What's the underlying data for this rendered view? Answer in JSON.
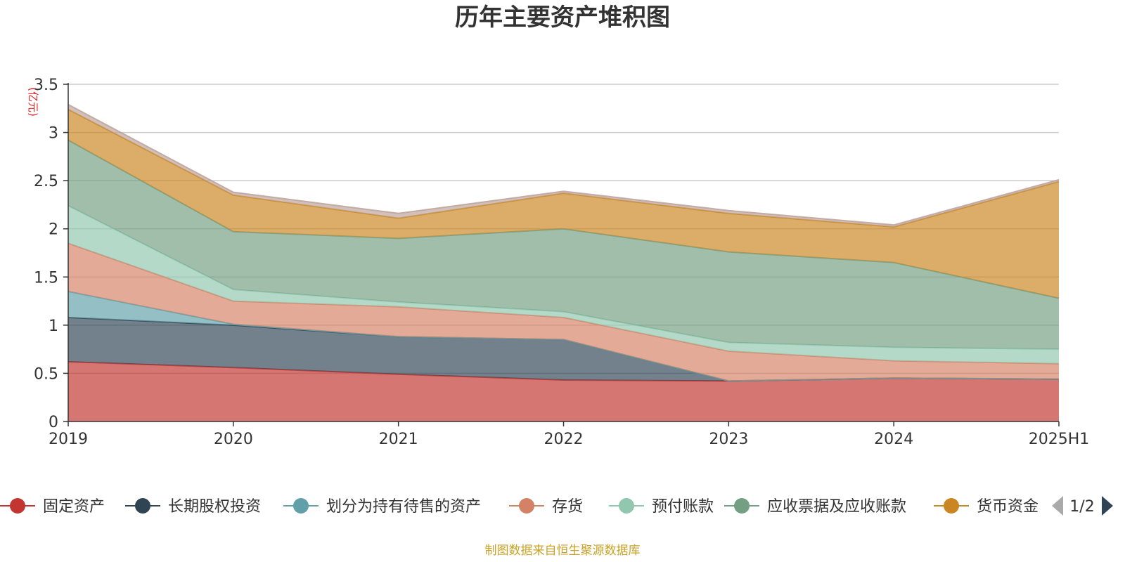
{
  "chart_data": {
    "type": "area",
    "stacked": true,
    "title": "历年主要资产堆积图",
    "y_unit": "(亿元)",
    "categories": [
      "2019",
      "2020",
      "2021",
      "2022",
      "2023",
      "2024",
      "2025H1"
    ],
    "ylim": [
      0,
      3.5
    ],
    "y_ticks": [
      "0",
      "0.5",
      "1",
      "1.5",
      "2",
      "2.5",
      "3",
      "3.5"
    ],
    "grid": true,
    "legend_position": "bottom",
    "series": [
      {
        "name": "固定资产",
        "color": "#c23531",
        "values": [
          0.62,
          0.56,
          0.49,
          0.43,
          0.42,
          0.45,
          0.44
        ]
      },
      {
        "name": "长期股权投资",
        "color": "#2f4554",
        "values": [
          0.46,
          0.44,
          0.39,
          0.42,
          0.0,
          0.0,
          0.0
        ]
      },
      {
        "name": "划分为持有待售的资产",
        "color": "#61a0a8",
        "values": [
          0.27,
          0.01,
          0.0,
          0.0,
          0.0,
          0.0,
          0.0
        ]
      },
      {
        "name": "存货",
        "color": "#d48265",
        "values": [
          0.5,
          0.24,
          0.31,
          0.23,
          0.31,
          0.18,
          0.16
        ]
      },
      {
        "name": "预付账款",
        "color": "#91c7ae",
        "values": [
          0.39,
          0.12,
          0.05,
          0.06,
          0.09,
          0.14,
          0.15
        ]
      },
      {
        "name": "应收票据及应收账款",
        "color": "#749f83",
        "values": [
          0.68,
          0.6,
          0.66,
          0.86,
          0.94,
          0.88,
          0.53
        ]
      },
      {
        "name": "货币资金",
        "color": "#ca8622",
        "values": [
          0.32,
          0.38,
          0.21,
          0.37,
          0.4,
          0.37,
          1.21
        ]
      },
      {
        "name": "",
        "color": "#bda29a",
        "values": [
          0.05,
          0.03,
          0.05,
          0.02,
          0.03,
          0.02,
          0.02
        ]
      }
    ],
    "legend_page": "1/2",
    "source": "制图数据来自恒生聚源数据库"
  }
}
